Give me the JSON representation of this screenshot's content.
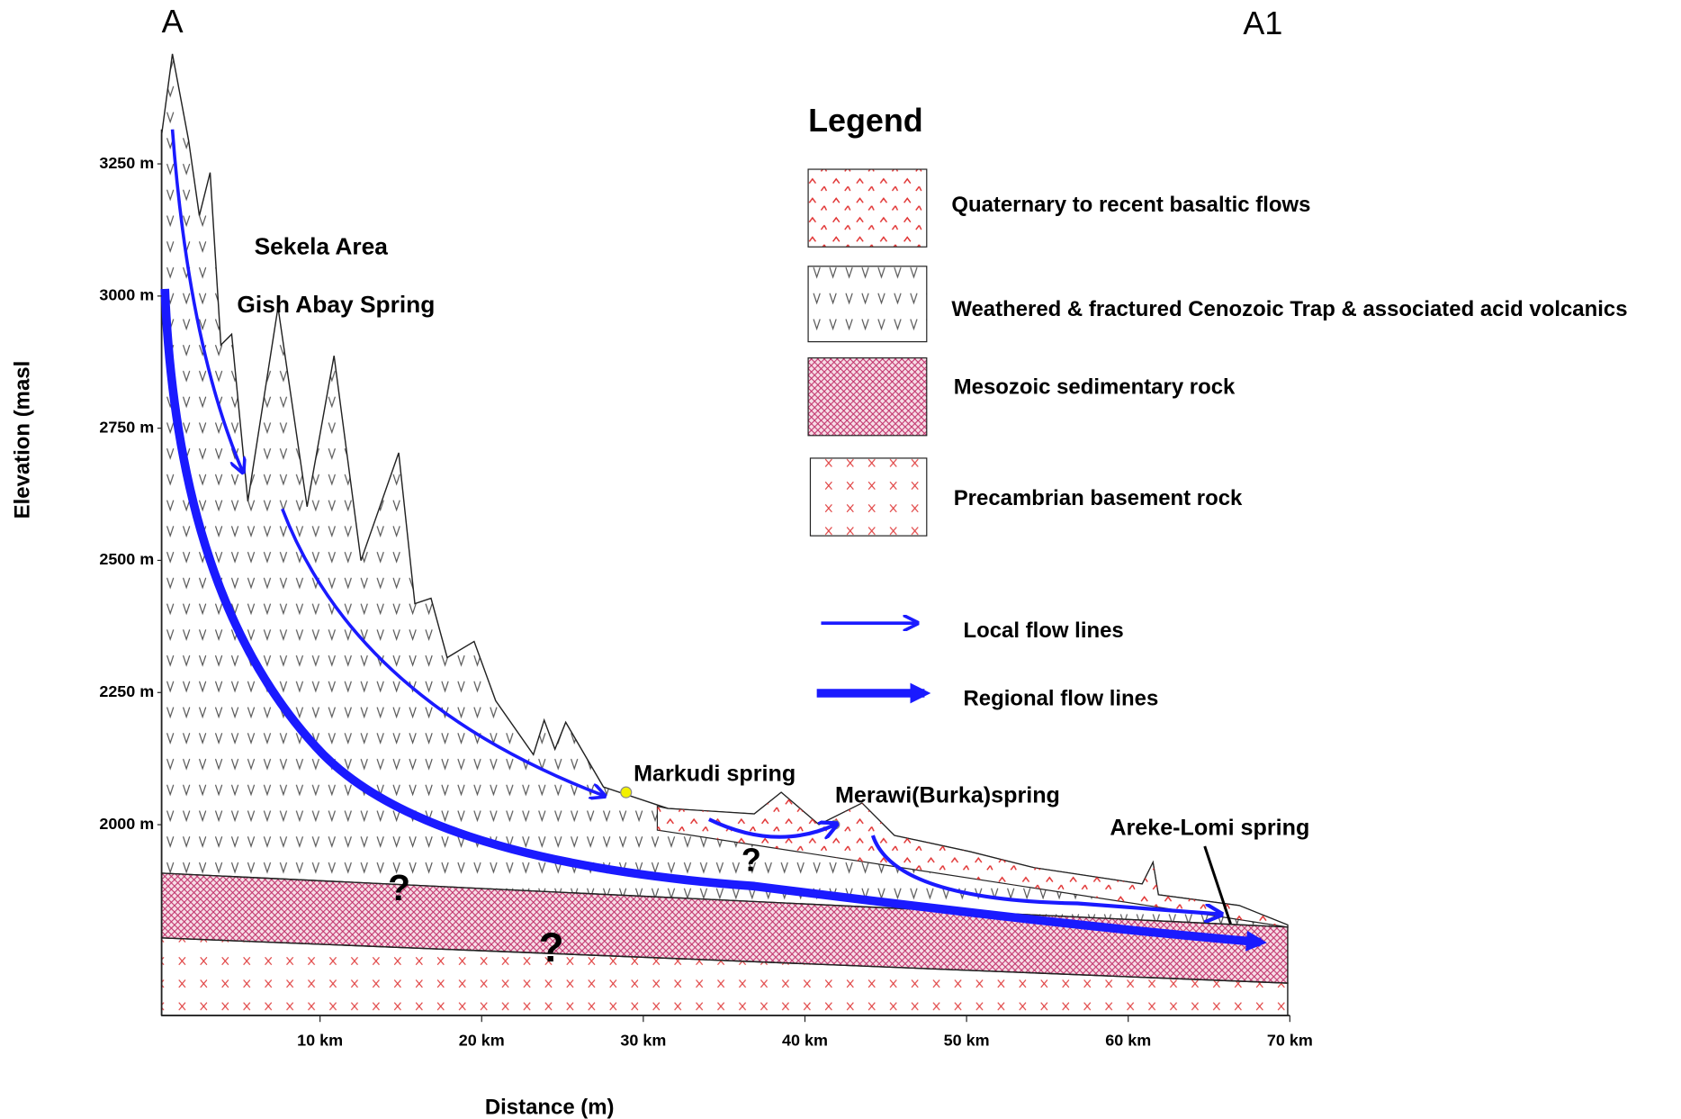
{
  "section_ends": {
    "start": "A",
    "end": "A1"
  },
  "y_axis": {
    "title": "Elevation (masl",
    "ticks": [
      "3250 m",
      "3000 m",
      "2750 m",
      "2500 m",
      "2250 m",
      "2000 m"
    ]
  },
  "x_axis": {
    "title": "Distance (m)",
    "ticks": [
      "10 km",
      "20 km",
      "30 km",
      "40 km",
      "50 km",
      "60 km",
      "70 km"
    ]
  },
  "annotations": [
    "Sekela Area",
    "Gish Abay Spring",
    "Markudi spring",
    "Merawi(Burka)spring",
    "Areke-Lomi spring"
  ],
  "unknown_marks": [
    "?",
    "?",
    "?"
  ],
  "legend": {
    "title": "Legend",
    "units": [
      "Quaternary to recent basaltic flows",
      "Weathered & fractured Cenozoic Trap & associated acid volcanics",
      "Mesozoic sedimentary rock",
      "Precambrian basement rock"
    ],
    "flows": [
      "Local flow lines",
      "Regional flow lines"
    ]
  }
}
